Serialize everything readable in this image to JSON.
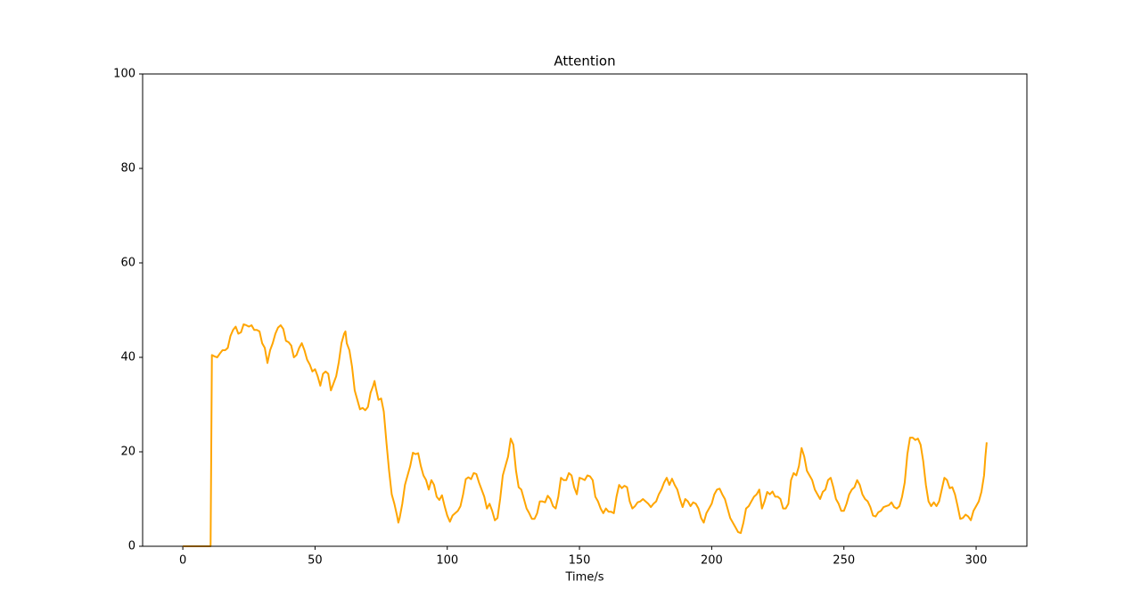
{
  "chart_data": {
    "type": "line",
    "title": "Attention",
    "x_label": "Time/s",
    "x": [
      0,
      10,
      10.5,
      11,
      12,
      13,
      14,
      15,
      16,
      17,
      18,
      19,
      20,
      21,
      22,
      23,
      24,
      25,
      26,
      27,
      28,
      29,
      30,
      31,
      32,
      33,
      34,
      35,
      36,
      37,
      38,
      39,
      40,
      41,
      42,
      43,
      44,
      45,
      46,
      47,
      48,
      49,
      50,
      51,
      52,
      53,
      54,
      55,
      56,
      57,
      58,
      59,
      60,
      61,
      61.5,
      62,
      63,
      64,
      65,
      66,
      67,
      68,
      69,
      70,
      71,
      72,
      72.5,
      73,
      74,
      75,
      76,
      77,
      78,
      79,
      80,
      81,
      81.5,
      82,
      83,
      84,
      85,
      86,
      87,
      88,
      89,
      90,
      91,
      92,
      93,
      94,
      95,
      96,
      97,
      98,
      99,
      100,
      101,
      102,
      103,
      104,
      105,
      106,
      107,
      108,
      109,
      110,
      111,
      112,
      113,
      114,
      115,
      116,
      117,
      118,
      119,
      120,
      121,
      122,
      123,
      124,
      125,
      126,
      127,
      128,
      129,
      130,
      131,
      132,
      133,
      134,
      135,
      136,
      137,
      138,
      139,
      140,
      141,
      142,
      143,
      144,
      145,
      146,
      147,
      148,
      149,
      150,
      151,
      152,
      153,
      154,
      155,
      156,
      157,
      158,
      159,
      160,
      161,
      162,
      163,
      164,
      165,
      166,
      167,
      168,
      169,
      170,
      171,
      172,
      173,
      174,
      175,
      176,
      177,
      178,
      179,
      180,
      181,
      182,
      183,
      184,
      185,
      186,
      187,
      188,
      189,
      190,
      191,
      192,
      193,
      194,
      195,
      196,
      197,
      198,
      199,
      200,
      201,
      202,
      203,
      204,
      205,
      206,
      207,
      208,
      209,
      210,
      211,
      212,
      213,
      214,
      215,
      216,
      217,
      218,
      219,
      220,
      221,
      222,
      223,
      224,
      225,
      226,
      227,
      228,
      229,
      230,
      231,
      232,
      233,
      234,
      235,
      236,
      237,
      238,
      239,
      240,
      241,
      242,
      243,
      244,
      245,
      246,
      247,
      248,
      249,
      250,
      251,
      252,
      253,
      254,
      255,
      256,
      257,
      258,
      259,
      260,
      261,
      262,
      263,
      264,
      265,
      266,
      267,
      268,
      269,
      270,
      271,
      272,
      273,
      274,
      275,
      276,
      277,
      278,
      279,
      280,
      281,
      282,
      283,
      284,
      285,
      286,
      287,
      288,
      289,
      290,
      291,
      292,
      293,
      294,
      295,
      296,
      297,
      298,
      299,
      300,
      301,
      302,
      303,
      303.5,
      304
    ],
    "series": [
      {
        "name": "Attention",
        "color": "#ffa500",
        "values": [
          0,
          0,
          0,
          40.5,
          40.2,
          40,
          40.8,
          41.5,
          41.5,
          42,
          44.5,
          45.8,
          46.5,
          45,
          45.3,
          47,
          46.8,
          46.5,
          46.8,
          45.8,
          45.8,
          45.5,
          43,
          42,
          38.8,
          41.5,
          43,
          45,
          46.3,
          46.8,
          46,
          43.5,
          43.2,
          42.5,
          40,
          40.5,
          42,
          43,
          41.5,
          39.5,
          38.5,
          37,
          37.5,
          36,
          34,
          36.5,
          37,
          36.5,
          33,
          34.5,
          36,
          39,
          43,
          45,
          45.5,
          43,
          41.5,
          38,
          33,
          31,
          29,
          29.3,
          28.8,
          29.5,
          32.5,
          34,
          35,
          33.5,
          31,
          31.3,
          28.5,
          22,
          16,
          11,
          9,
          6.5,
          5,
          6,
          9,
          13,
          15,
          17,
          19.8,
          19.5,
          19.7,
          17,
          15,
          14,
          12,
          14,
          13,
          10.5,
          9.8,
          10.8,
          8.5,
          6.5,
          5.2,
          6.5,
          7,
          7.5,
          8.5,
          11,
          14.2,
          14.6,
          14.2,
          15.5,
          15.3,
          13.5,
          12,
          10.5,
          8,
          9,
          7.5,
          5.5,
          6,
          10,
          15,
          17,
          19,
          22.8,
          21.5,
          16,
          12.5,
          12,
          10,
          8,
          7,
          5.8,
          5.8,
          7,
          9.5,
          9.5,
          9.3,
          10.7,
          10,
          8.5,
          8,
          10.5,
          14.5,
          14,
          14,
          15.5,
          15,
          12.5,
          11,
          14.5,
          14.3,
          14,
          15,
          14.8,
          14,
          10.5,
          9.5,
          8,
          7,
          8,
          7.3,
          7.3,
          7,
          10.5,
          13,
          12.3,
          12.8,
          12.5,
          9.5,
          8,
          8.5,
          9.3,
          9.5,
          10,
          9.5,
          9,
          8.3,
          9,
          9.5,
          11,
          12,
          13.5,
          14.5,
          13,
          14.3,
          13,
          12,
          10,
          8.3,
          10,
          9.5,
          8.5,
          9.3,
          9,
          8,
          6,
          5,
          7,
          8,
          9,
          11,
          12,
          12.2,
          11,
          10,
          8,
          6,
          5,
          4,
          3,
          2.8,
          5,
          8,
          8.5,
          9.5,
          10.5,
          11,
          12,
          8,
          9.5,
          11.5,
          11,
          11.6,
          10.5,
          10.5,
          10,
          8,
          8,
          9,
          14,
          15.5,
          15,
          17,
          20.8,
          19,
          16,
          15,
          14,
          12,
          11,
          10,
          11.5,
          12,
          14,
          14.5,
          12.5,
          10,
          9,
          7.5,
          7.5,
          9,
          11,
          12,
          12.5,
          14,
          13,
          11,
          10,
          9.5,
          8.3,
          6.5,
          6.3,
          7.2,
          7.5,
          8.3,
          8.5,
          8.7,
          9.3,
          8.3,
          8,
          8.5,
          10.5,
          13.5,
          19.5,
          23,
          23,
          22.5,
          22.8,
          21.5,
          18,
          13,
          9.5,
          8.5,
          9.3,
          8.5,
          9.5,
          12,
          14.5,
          14,
          12.3,
          12.5,
          11,
          8.5,
          5.8,
          6,
          6.7,
          6.3,
          5.5,
          7.5,
          8.5,
          9.5,
          11.5,
          15,
          19,
          22
        ]
      }
    ],
    "xlim": [
      -15.2,
      319.2
    ],
    "ylim": [
      0,
      100
    ],
    "xticks": [
      0,
      50,
      100,
      150,
      200,
      250,
      300
    ],
    "yticks": [
      0,
      20,
      40,
      60,
      80,
      100
    ],
    "grid": false
  }
}
